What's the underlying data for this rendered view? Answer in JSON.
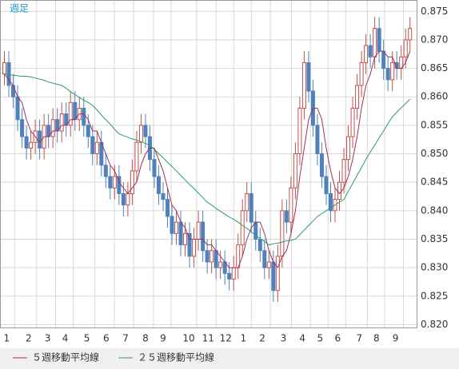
{
  "chart_data": {
    "type": "candlestick",
    "title": "週足",
    "xlim": [
      -1,
      93.5
    ],
    "ylim": [
      0.8195,
      0.877
    ],
    "xticks": [
      {
        "value": 0.5,
        "label": "1"
      },
      {
        "value": 5.5,
        "label": "2"
      },
      {
        "value": 9.8,
        "label": "3"
      },
      {
        "value": 13.8,
        "label": "4"
      },
      {
        "value": 18.7,
        "label": "5"
      },
      {
        "value": 23.1,
        "label": "6"
      },
      {
        "value": 27.5,
        "label": "7"
      },
      {
        "value": 32,
        "label": "8"
      },
      {
        "value": 36,
        "label": "9"
      },
      {
        "value": 41.8,
        "label": "10"
      },
      {
        "value": 46.2,
        "label": "11"
      },
      {
        "value": 50.2,
        "label": "12"
      },
      {
        "value": 54.2,
        "label": "1"
      },
      {
        "value": 58.5,
        "label": "2"
      },
      {
        "value": 63.3,
        "label": "3"
      },
      {
        "value": 67.6,
        "label": "4"
      },
      {
        "value": 71.6,
        "label": "5"
      },
      {
        "value": 75.6,
        "label": "6"
      },
      {
        "value": 80.5,
        "label": "7"
      },
      {
        "value": 84.4,
        "label": "8"
      },
      {
        "value": 88.7,
        "label": "9"
      }
    ],
    "yticks": [
      {
        "value": 0.82,
        "label": "0.820"
      },
      0.825,
      {
        "value": 0.83,
        "label": "0.830"
      },
      0.835,
      {
        "value": 0.84,
        "label": "0.840"
      },
      0.845,
      {
        "value": 0.85,
        "label": "0.850"
      },
      0.855,
      {
        "value": 0.86,
        "label": "0.860"
      },
      0.865,
      {
        "value": 0.87,
        "label": "0.870"
      },
      0.875
    ],
    "grid": true,
    "up_color": "#c0504d",
    "down_color": "#4f81bd",
    "open": [
      0.864,
      0.866,
      0.862,
      0.86,
      0.856,
      0.853,
      0.851,
      0.852,
      0.854,
      0.851,
      0.855,
      0.853,
      0.856,
      0.854,
      0.857,
      0.855,
      0.859,
      0.856,
      0.858,
      0.855,
      0.853,
      0.85,
      0.852,
      0.848,
      0.846,
      0.844,
      0.846,
      0.843,
      0.841,
      0.843,
      0.847,
      0.852,
      0.855,
      0.853,
      0.849,
      0.846,
      0.843,
      0.842,
      0.839,
      0.836,
      0.838,
      0.834,
      0.836,
      0.832,
      0.835,
      0.838,
      0.833,
      0.831,
      0.833,
      0.83,
      0.831,
      0.829,
      0.828,
      0.83,
      0.834,
      0.84,
      0.843,
      0.838,
      0.835,
      0.833,
      0.83,
      0.831,
      0.826,
      0.832,
      0.84,
      0.838,
      0.844,
      0.85,
      0.858,
      0.866,
      0.861,
      0.855,
      0.85,
      0.846,
      0.843,
      0.84,
      0.842,
      0.845,
      0.849,
      0.853,
      0.858,
      0.862,
      0.866,
      0.869,
      0.867,
      0.872,
      0.868,
      0.865,
      0.863,
      0.866,
      0.865,
      0.867,
      0.87
    ],
    "high": [
      0.868,
      0.868,
      0.864,
      0.862,
      0.858,
      0.855,
      0.854,
      0.856,
      0.856,
      0.857,
      0.857,
      0.858,
      0.858,
      0.859,
      0.859,
      0.861,
      0.861,
      0.86,
      0.86,
      0.857,
      0.855,
      0.854,
      0.854,
      0.85,
      0.848,
      0.848,
      0.848,
      0.845,
      0.845,
      0.849,
      0.854,
      0.857,
      0.857,
      0.855,
      0.851,
      0.848,
      0.845,
      0.844,
      0.841,
      0.84,
      0.84,
      0.838,
      0.838,
      0.837,
      0.84,
      0.84,
      0.835,
      0.835,
      0.835,
      0.833,
      0.833,
      0.831,
      0.832,
      0.836,
      0.842,
      0.845,
      0.845,
      0.84,
      0.837,
      0.835,
      0.833,
      0.833,
      0.834,
      0.842,
      0.842,
      0.846,
      0.852,
      0.86,
      0.868,
      0.868,
      0.863,
      0.857,
      0.852,
      0.848,
      0.845,
      0.844,
      0.847,
      0.851,
      0.855,
      0.86,
      0.864,
      0.868,
      0.871,
      0.871,
      0.874,
      0.874,
      0.87,
      0.867,
      0.868,
      0.868,
      0.869,
      0.872,
      0.874
    ],
    "low": [
      0.862,
      0.86,
      0.858,
      0.854,
      0.851,
      0.849,
      0.849,
      0.85,
      0.849,
      0.849,
      0.851,
      0.851,
      0.852,
      0.852,
      0.853,
      0.853,
      0.854,
      0.854,
      0.853,
      0.851,
      0.848,
      0.848,
      0.846,
      0.844,
      0.842,
      0.842,
      0.841,
      0.839,
      0.839,
      0.841,
      0.845,
      0.85,
      0.851,
      0.847,
      0.844,
      0.841,
      0.84,
      0.837,
      0.834,
      0.834,
      0.832,
      0.832,
      0.83,
      0.83,
      0.833,
      0.831,
      0.829,
      0.829,
      0.828,
      0.828,
      0.827,
      0.826,
      0.826,
      0.828,
      0.832,
      0.838,
      0.836,
      0.833,
      0.831,
      0.828,
      0.828,
      0.824,
      0.824,
      0.83,
      0.836,
      0.836,
      0.842,
      0.848,
      0.856,
      0.859,
      0.853,
      0.848,
      0.844,
      0.841,
      0.838,
      0.838,
      0.84,
      0.843,
      0.847,
      0.851,
      0.856,
      0.86,
      0.864,
      0.865,
      0.865,
      0.866,
      0.863,
      0.861,
      0.861,
      0.863,
      0.863,
      0.865,
      0.868
    ],
    "close": [
      0.866,
      0.862,
      0.86,
      0.856,
      0.853,
      0.851,
      0.852,
      0.854,
      0.851,
      0.855,
      0.853,
      0.856,
      0.854,
      0.857,
      0.855,
      0.859,
      0.856,
      0.858,
      0.855,
      0.853,
      0.85,
      0.852,
      0.848,
      0.846,
      0.844,
      0.846,
      0.843,
      0.841,
      0.843,
      0.847,
      0.852,
      0.855,
      0.853,
      0.849,
      0.846,
      0.843,
      0.842,
      0.839,
      0.836,
      0.838,
      0.834,
      0.836,
      0.832,
      0.835,
      0.838,
      0.833,
      0.831,
      0.833,
      0.83,
      0.831,
      0.829,
      0.828,
      0.83,
      0.834,
      0.84,
      0.843,
      0.838,
      0.835,
      0.833,
      0.83,
      0.831,
      0.826,
      0.832,
      0.84,
      0.838,
      0.844,
      0.85,
      0.858,
      0.866,
      0.861,
      0.855,
      0.85,
      0.846,
      0.843,
      0.84,
      0.842,
      0.845,
      0.849,
      0.853,
      0.858,
      0.862,
      0.866,
      0.869,
      0.867,
      0.872,
      0.868,
      0.865,
      0.863,
      0.866,
      0.865,
      0.867,
      0.87,
      0.872
    ],
    "series": [
      {
        "name": "５週移動平均線",
        "color": "#a0305a",
        "values": [
          0.864,
          0.863,
          0.862,
          0.86,
          0.859,
          0.856,
          0.854,
          0.853,
          0.852,
          0.853,
          0.853,
          0.854,
          0.854,
          0.855,
          0.855,
          0.856,
          0.856,
          0.857,
          0.857,
          0.856,
          0.854,
          0.854,
          0.852,
          0.85,
          0.848,
          0.847,
          0.845,
          0.844,
          0.843,
          0.844,
          0.845,
          0.848,
          0.85,
          0.851,
          0.851,
          0.849,
          0.847,
          0.844,
          0.841,
          0.84,
          0.838,
          0.837,
          0.835,
          0.835,
          0.835,
          0.835,
          0.834,
          0.834,
          0.833,
          0.832,
          0.831,
          0.83,
          0.83,
          0.83,
          0.832,
          0.835,
          0.837,
          0.838,
          0.838,
          0.836,
          0.833,
          0.831,
          0.83,
          0.832,
          0.833,
          0.836,
          0.84,
          0.846,
          0.851,
          0.856,
          0.858,
          0.858,
          0.856,
          0.851,
          0.847,
          0.844,
          0.843,
          0.844,
          0.846,
          0.849,
          0.853,
          0.858,
          0.862,
          0.864,
          0.867,
          0.868,
          0.868,
          0.867,
          0.867,
          0.865,
          0.865,
          0.866,
          0.868
        ]
      },
      {
        "name": "２５週移動平均線",
        "color": "#2e9a6a",
        "values": [
          0.864,
          0.8639,
          0.8638,
          0.8637,
          0.8636,
          0.8636,
          0.8635,
          0.8633,
          0.8631,
          0.8629,
          0.8626,
          0.8624,
          0.8622,
          0.862,
          0.8615,
          0.8609,
          0.8604,
          0.8599,
          0.8594,
          0.859,
          0.8585,
          0.8577,
          0.8568,
          0.856,
          0.8552,
          0.8543,
          0.8535,
          0.8532,
          0.8529,
          0.8526,
          0.8524,
          0.8521,
          0.8518,
          0.8515,
          0.8508,
          0.85,
          0.8493,
          0.8485,
          0.8478,
          0.847,
          0.8462,
          0.8454,
          0.8446,
          0.8439,
          0.8431,
          0.8423,
          0.8415,
          0.841,
          0.8404,
          0.8399,
          0.8394,
          0.8389,
          0.8385,
          0.838,
          0.8374,
          0.8369,
          0.8363,
          0.8357,
          0.8351,
          0.8346,
          0.834,
          0.8342,
          0.8343,
          0.8345,
          0.8347,
          0.8348,
          0.835,
          0.8358,
          0.8366,
          0.8374,
          0.8382,
          0.839,
          0.8395,
          0.84,
          0.8405,
          0.841,
          0.8415,
          0.842,
          0.8434,
          0.8448,
          0.8462,
          0.8476,
          0.849,
          0.8503,
          0.8515,
          0.8528,
          0.854,
          0.8553,
          0.8565,
          0.8573,
          0.8581,
          0.8588,
          0.8596
        ]
      }
    ]
  }
}
